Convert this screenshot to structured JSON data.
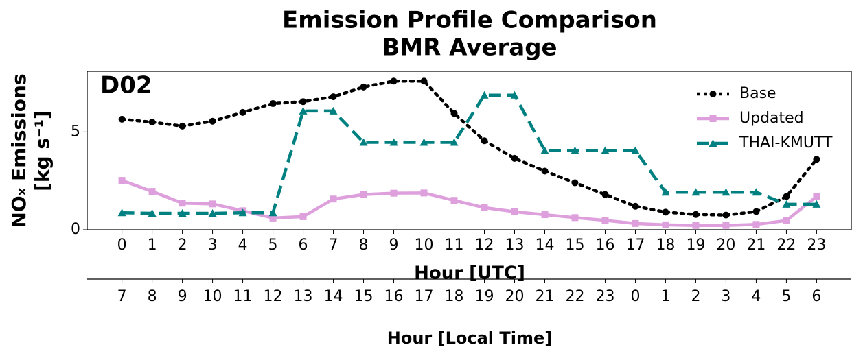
{
  "chart_data": {
    "type": "line",
    "title": "Emission Profile Comparison",
    "subtitle": "BMR Average",
    "annotation": "D02",
    "xlabel": "Hour [UTC]",
    "ylabel_lines": [
      "NOₓ Emissions",
      "[kg s⁻¹]"
    ],
    "x2label": "Hour [Local Time]",
    "x": [
      0,
      1,
      2,
      3,
      4,
      5,
      6,
      7,
      8,
      9,
      10,
      11,
      12,
      13,
      14,
      15,
      16,
      17,
      18,
      19,
      20,
      21,
      22,
      23
    ],
    "xlim": [
      -1.15,
      24.15
    ],
    "xticks": [
      0,
      1,
      2,
      3,
      4,
      5,
      6,
      7,
      8,
      9,
      10,
      11,
      12,
      13,
      14,
      15,
      16,
      17,
      18,
      19,
      20,
      21,
      22,
      23
    ],
    "x2ticks": [
      {
        "value": 0,
        "label": "7"
      },
      {
        "value": 1,
        "label": "8"
      },
      {
        "value": 2,
        "label": "9"
      },
      {
        "value": 3,
        "label": "10"
      },
      {
        "value": 4,
        "label": "11"
      },
      {
        "value": 5,
        "label": "12"
      },
      {
        "value": 6,
        "label": "13"
      },
      {
        "value": 7,
        "label": "14"
      },
      {
        "value": 8,
        "label": "15"
      },
      {
        "value": 9,
        "label": "16"
      },
      {
        "value": 10,
        "label": "17"
      },
      {
        "value": 11,
        "label": "18"
      },
      {
        "value": 12,
        "label": "19"
      },
      {
        "value": 13,
        "label": "20"
      },
      {
        "value": 14,
        "label": "21"
      },
      {
        "value": 15,
        "label": "22"
      },
      {
        "value": 16,
        "label": "23"
      },
      {
        "value": 17,
        "label": "0"
      },
      {
        "value": 18,
        "label": "1"
      },
      {
        "value": 19,
        "label": "2"
      },
      {
        "value": 20,
        "label": "3"
      },
      {
        "value": 21,
        "label": "4"
      },
      {
        "value": 22,
        "label": "5"
      },
      {
        "value": 23,
        "label": "6"
      }
    ],
    "ylim": [
      0,
      8.1
    ],
    "yticks": [
      0,
      5
    ],
    "legend": "upper right",
    "series": [
      {
        "name": "Base",
        "color": "#000000",
        "marker": "circle",
        "dash": "dotted",
        "values": [
          5.65,
          5.5,
          5.3,
          5.55,
          6.0,
          6.45,
          6.55,
          6.8,
          7.3,
          7.6,
          7.6,
          5.95,
          4.55,
          3.65,
          3.0,
          2.4,
          1.8,
          1.2,
          0.9,
          0.78,
          0.75,
          0.93,
          1.7,
          3.6
        ]
      },
      {
        "name": "Updated",
        "color": "#dda0dd",
        "marker": "square",
        "dash": "solid",
        "values": [
          2.52,
          1.96,
          1.36,
          1.32,
          0.97,
          0.6,
          0.67,
          1.57,
          1.8,
          1.87,
          1.88,
          1.5,
          1.13,
          0.92,
          0.77,
          0.62,
          0.48,
          0.32,
          0.25,
          0.22,
          0.22,
          0.27,
          0.47,
          1.7
        ]
      },
      {
        "name": "THAI-KMUTT",
        "color": "#008080",
        "marker": "triangle",
        "dash": "dashed",
        "values": [
          0.87,
          0.84,
          0.84,
          0.84,
          0.87,
          0.87,
          6.07,
          6.07,
          4.47,
          4.47,
          4.47,
          4.47,
          6.88,
          6.88,
          4.05,
          4.05,
          4.05,
          4.05,
          1.92,
          1.92,
          1.92,
          1.92,
          1.3,
          1.3
        ]
      }
    ]
  }
}
